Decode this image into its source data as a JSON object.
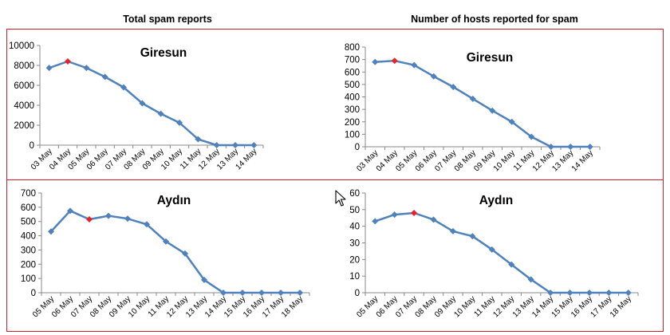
{
  "headers": {
    "left": "Total spam reports",
    "right": "Number of hosts reported for spam"
  },
  "colors": {
    "line": "#4f81bd",
    "highlight": "#e8222b",
    "frame": "#d01d2a",
    "axis": "#888888"
  },
  "icons": {
    "cursor": "mouse-pointer-icon"
  },
  "chart_data": [
    {
      "type": "line",
      "title": "Giresun",
      "categories": [
        "03 May",
        "04 May",
        "05 May",
        "06 May",
        "07 May",
        "08 May",
        "09 May",
        "10 May",
        "11 May",
        "12 May",
        "13 May",
        "14 May"
      ],
      "series": [
        {
          "values": [
            7750,
            8400,
            7750,
            6850,
            5800,
            4200,
            3150,
            2250,
            600,
            0,
            0,
            0
          ]
        }
      ],
      "highlight_index": 1,
      "ylim": [
        0,
        10000
      ],
      "yticks": [
        0,
        2000,
        4000,
        6000,
        8000,
        10000
      ],
      "grid": false
    },
    {
      "type": "line",
      "title": "Giresun",
      "categories": [
        "03 May",
        "04 May",
        "05 May",
        "06 May",
        "07 May",
        "08 May",
        "09 May",
        "10 May",
        "11 May",
        "12 May",
        "13 May",
        "14 May"
      ],
      "series": [
        {
          "values": [
            680,
            690,
            655,
            565,
            480,
            385,
            290,
            200,
            80,
            0,
            0,
            0
          ]
        }
      ],
      "highlight_index": 1,
      "ylim": [
        0,
        800
      ],
      "yticks": [
        0,
        100,
        200,
        300,
        400,
        500,
        600,
        700,
        800
      ],
      "grid": false
    },
    {
      "type": "line",
      "title": "Aydın",
      "categories": [
        "05 May",
        "06 May",
        "07 May",
        "08 May",
        "09 May",
        "10 May",
        "11 May",
        "12 May",
        "13 May",
        "14 May",
        "15 May",
        "16 May",
        "17 May",
        "18 May"
      ],
      "series": [
        {
          "values": [
            430,
            575,
            515,
            540,
            520,
            480,
            360,
            275,
            90,
            0,
            0,
            0,
            0,
            0
          ]
        }
      ],
      "highlight_index": 2,
      "ylim": [
        0,
        700
      ],
      "yticks": [
        0,
        100,
        200,
        300,
        400,
        500,
        600,
        700
      ],
      "grid": false
    },
    {
      "type": "line",
      "title": "Aydın",
      "categories": [
        "05 May",
        "06 May",
        "07 May",
        "08 May",
        "09 May",
        "10 May",
        "11 May",
        "12 May",
        "13 May",
        "14 May",
        "15 May",
        "16 May",
        "17 May",
        "18 May"
      ],
      "series": [
        {
          "values": [
            43,
            47,
            48,
            44,
            37,
            34,
            26,
            17,
            8,
            0,
            0,
            0,
            0,
            0
          ]
        }
      ],
      "highlight_index": 2,
      "ylim": [
        0,
        60
      ],
      "yticks": [
        0,
        10,
        20,
        30,
        40,
        50,
        60
      ],
      "grid": false
    }
  ]
}
